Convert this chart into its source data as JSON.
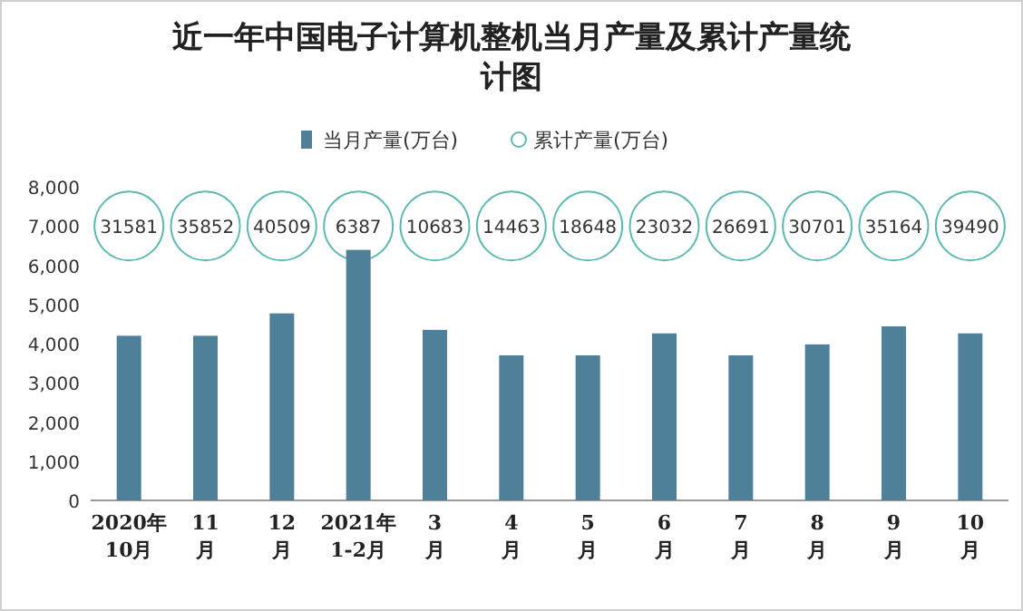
{
  "chart_data": {
    "type": "bar",
    "title": "近一年中国电子计算机整机当月产量及累计产量统计图",
    "categories": [
      "2020年\n10月",
      "11\n月",
      "12\n月",
      "2021年\n1-2月",
      "3\n月",
      "4\n月",
      "5\n月",
      "6\n月",
      "7\n月",
      "8\n月",
      "9\n月",
      "10\n月"
    ],
    "series": [
      {
        "name": "当月产量(万台)",
        "color": "#4e8199",
        "values": [
          4200,
          4200,
          4770,
          6390,
          4350,
          3700,
          3700,
          4260,
          3700,
          3980,
          4440,
          4260
        ]
      },
      {
        "name": "累计产量(万台)",
        "type": "scatter",
        "color": "#5cb8b2",
        "values": [
          null,
          null,
          null,
          null,
          null,
          null,
          null,
          null,
          null,
          null,
          null,
          null
        ]
      }
    ],
    "annotations": [
      {
        "text": "31581",
        "x": "2020年\n10月"
      },
      {
        "text": "35852",
        "x": "11\n月"
      },
      {
        "text": "40509",
        "x": "12\n月"
      },
      {
        "text": "6387",
        "x": "2021年\n1-2月"
      },
      {
        "text": "10683",
        "x": "3\n月"
      },
      {
        "text": "14463",
        "x": "4\n月"
      },
      {
        "text": "18648",
        "x": "5\n月"
      },
      {
        "text": "23032",
        "x": "6\n月"
      },
      {
        "text": "26691",
        "x": "7\n月"
      },
      {
        "text": "30701",
        "x": "8\n月"
      },
      {
        "text": "35164",
        "x": "9\n月"
      },
      {
        "text": "39490",
        "x": "10\n月"
      }
    ],
    "ylim": [
      0,
      8000
    ],
    "yticks": [
      {
        "value": 0,
        "label": "0"
      },
      {
        "value": 1000,
        "label": "1,000"
      },
      {
        "value": 2000,
        "label": "2,000"
      },
      {
        "value": 3000,
        "label": "3,000"
      },
      {
        "value": 4000,
        "label": "4,000"
      },
      {
        "value": 5000,
        "label": "5,000"
      },
      {
        "value": 6000,
        "label": "6,000"
      },
      {
        "value": 7000,
        "label": "7,000"
      },
      {
        "value": 8000,
        "label": "8,000"
      }
    ],
    "grid": false,
    "legend": "top"
  }
}
